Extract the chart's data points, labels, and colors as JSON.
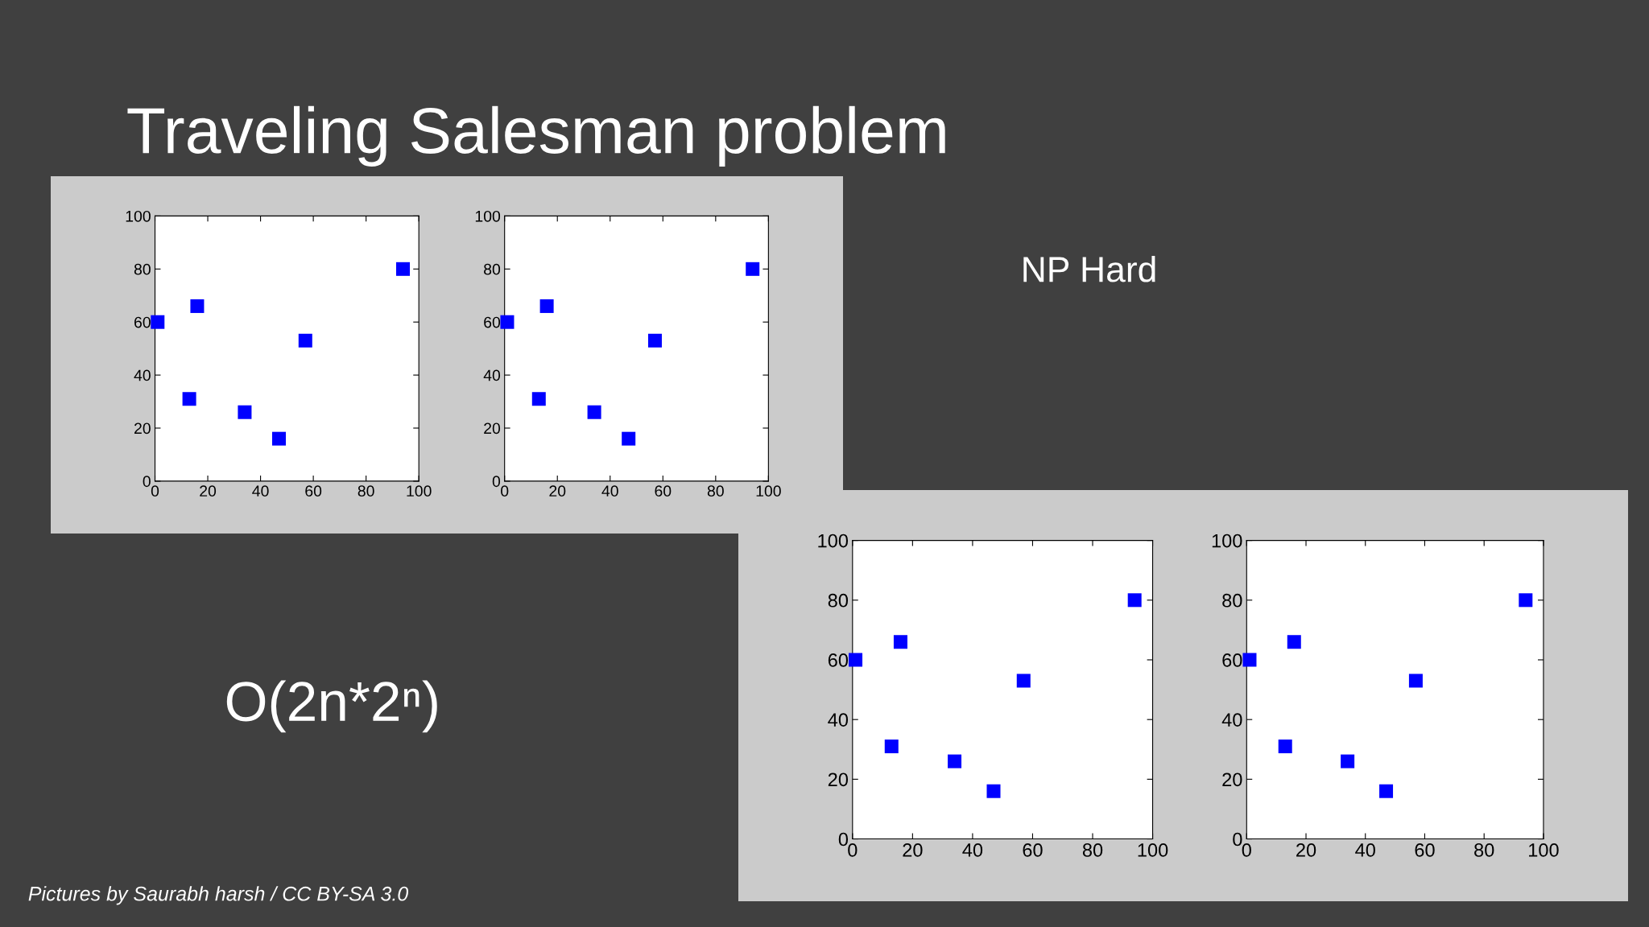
{
  "chart_data": [
    {
      "type": "scatter",
      "title": "Traveling Salesman problem",
      "annotations": [
        "NP Hard",
        "O(2n*2ⁿ)",
        "Pictures by Saurabh harsh / CC BY-SA 3.0"
      ],
      "x": [
        1,
        13,
        16,
        34,
        47,
        57,
        94
      ],
      "values": [
        60,
        31,
        66,
        26,
        16,
        53,
        80
      ],
      "color": "#0000ff",
      "marker": "square",
      "xlim": [
        0,
        100
      ],
      "ylim": [
        0,
        100
      ],
      "xticks": [
        0,
        20,
        40,
        60,
        80,
        100
      ],
      "yticks": [
        0,
        20,
        40,
        60,
        80,
        100
      ],
      "grid": false
    },
    {
      "type": "scatter",
      "x": [
        1,
        13,
        16,
        34,
        47,
        57,
        94
      ],
      "values": [
        60,
        31,
        66,
        26,
        16,
        53,
        80
      ],
      "color": "#0000ff",
      "marker": "square",
      "xlim": [
        0,
        100
      ],
      "ylim": [
        0,
        100
      ],
      "xticks": [
        0,
        20,
        40,
        60,
        80,
        100
      ],
      "yticks": [
        0,
        20,
        40,
        60,
        80,
        100
      ],
      "grid": false
    },
    {
      "type": "scatter",
      "x": [
        1,
        13,
        16,
        34,
        47,
        57,
        94
      ],
      "values": [
        60,
        31,
        66,
        26,
        16,
        53,
        80
      ],
      "color": "#0000ff",
      "marker": "square",
      "xlim": [
        0,
        100
      ],
      "ylim": [
        0,
        100
      ],
      "xticks": [
        0,
        20,
        40,
        60,
        80,
        100
      ],
      "yticks": [
        0,
        20,
        40,
        60,
        80,
        100
      ],
      "grid": false
    },
    {
      "type": "scatter",
      "x": [
        1,
        13,
        16,
        34,
        47,
        57,
        94
      ],
      "values": [
        60,
        31,
        66,
        26,
        16,
        53,
        80
      ],
      "color": "#0000ff",
      "marker": "square",
      "xlim": [
        0,
        100
      ],
      "ylim": [
        0,
        100
      ],
      "xticks": [
        0,
        20,
        40,
        60,
        80,
        100
      ],
      "yticks": [
        0,
        20,
        40,
        60,
        80,
        100
      ],
      "grid": false
    }
  ]
}
